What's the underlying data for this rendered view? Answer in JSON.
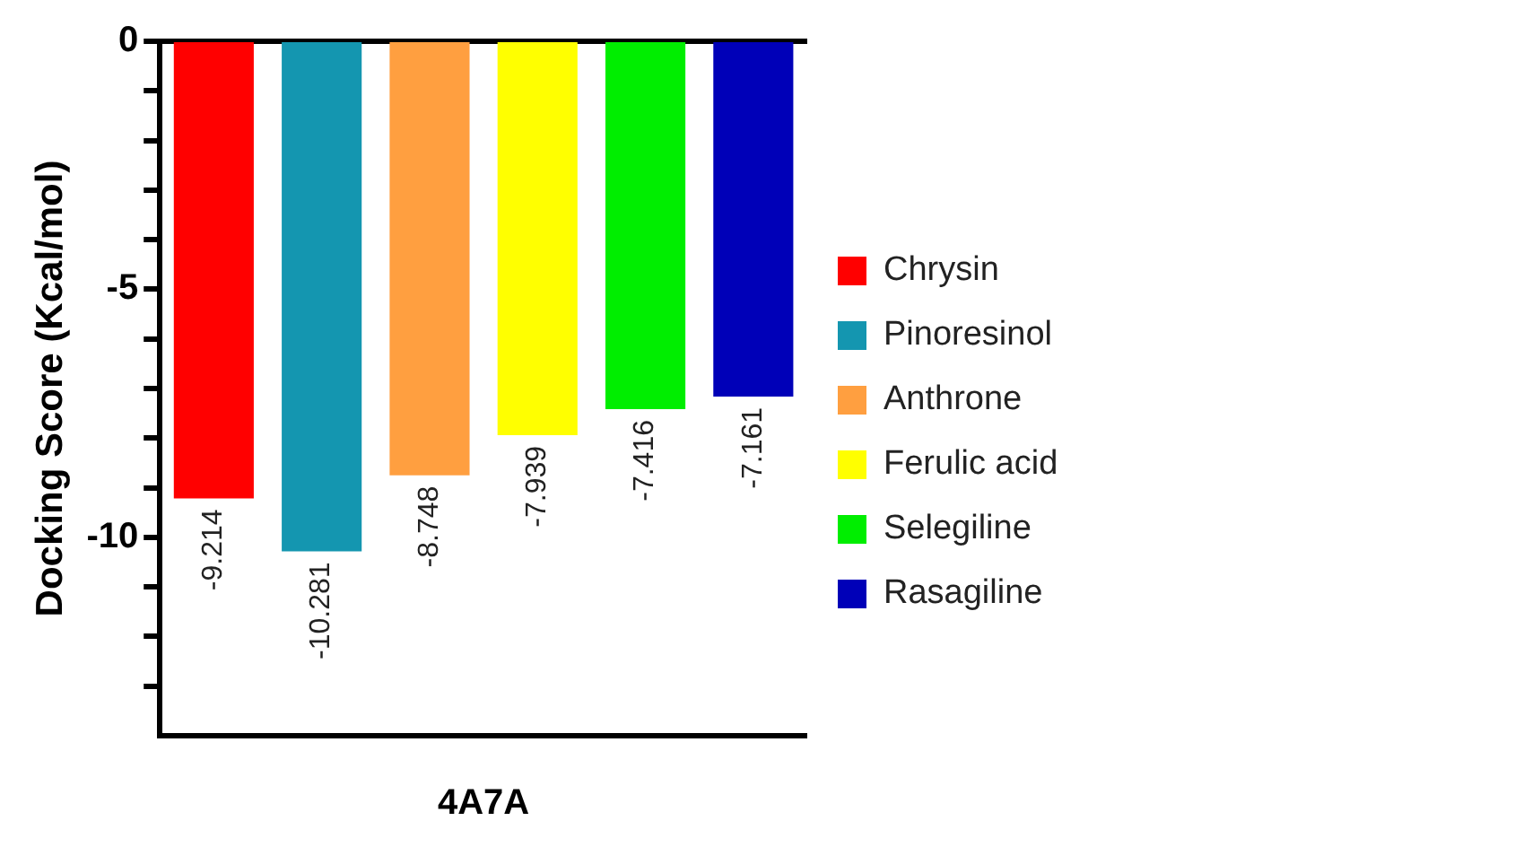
{
  "chart_data": {
    "type": "bar",
    "ylabel": "Docking Score (Kcal/mol)",
    "xlabel": "4A7A",
    "categories": [
      null,
      null,
      null,
      null,
      null,
      null
    ],
    "series": [
      {
        "name": "Chrysin",
        "color": "#ff0000",
        "values": [
          -9.214,
          null,
          null,
          null,
          null,
          null
        ]
      },
      {
        "name": "Pinoresinol",
        "color": "#1496b0",
        "values": [
          null,
          -10.281,
          null,
          null,
          null,
          null
        ]
      },
      {
        "name": "Anthrone",
        "color": "#ff9f40",
        "values": [
          null,
          null,
          -8.748,
          null,
          null,
          null
        ]
      },
      {
        "name": "Ferulic acid",
        "color": "#ffff00",
        "values": [
          null,
          null,
          null,
          -7.939,
          null,
          null
        ]
      },
      {
        "name": "Selegiline",
        "color": "#00ee00",
        "values": [
          null,
          null,
          null,
          null,
          -7.416,
          null
        ]
      },
      {
        "name": "Rasagiline",
        "color": "#0000b8",
        "values": [
          null,
          null,
          null,
          null,
          null,
          -7.161
        ]
      }
    ],
    "ylim": [
      -14,
      0
    ],
    "yticks": [
      0,
      {
        "value": -1,
        "label": null
      },
      {
        "value": -2,
        "label": null
      },
      {
        "value": -3,
        "label": null
      },
      {
        "value": -4,
        "label": null
      },
      -5,
      {
        "value": -6,
        "label": null
      },
      {
        "value": -7,
        "label": null
      },
      {
        "value": -8,
        "label": null
      },
      {
        "value": -9,
        "label": null
      },
      -10,
      {
        "value": -11,
        "label": null
      },
      {
        "value": -12,
        "label": null
      },
      {
        "value": -13,
        "label": null
      }
    ],
    "grid": false,
    "legend": "right",
    "data_labels": true
  }
}
